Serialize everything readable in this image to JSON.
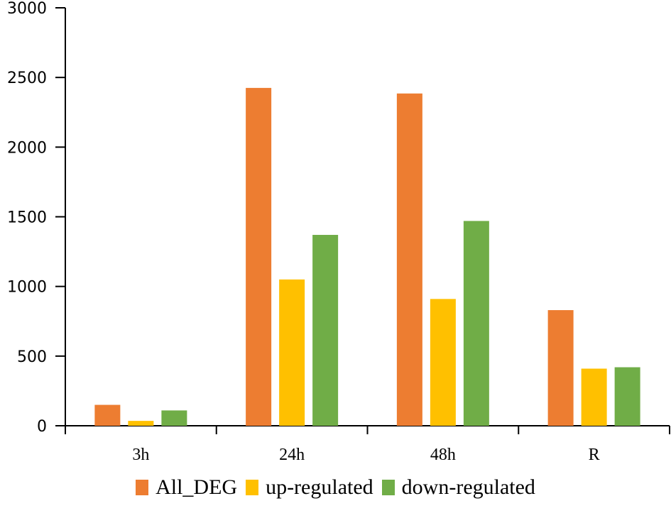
{
  "chart_data": {
    "type": "bar",
    "title": "",
    "xlabel": "",
    "ylabel": "",
    "categories": [
      "3h",
      "24h",
      "48h",
      "R"
    ],
    "series": [
      {
        "name": "All_DEG",
        "color": "#ED7D31",
        "values": [
          150,
          2425,
          2385,
          830
        ]
      },
      {
        "name": "up-regulated",
        "color": "#FFC000",
        "values": [
          35,
          1050,
          910,
          410
        ]
      },
      {
        "name": "down-regulated",
        "color": "#70AD47",
        "values": [
          110,
          1370,
          1470,
          420
        ]
      }
    ],
    "ylim": [
      0,
      3000
    ],
    "yticks": [
      0,
      500,
      1000,
      1500,
      2000,
      2500,
      3000
    ],
    "grid": false,
    "legend_position": "bottom"
  },
  "legend": {
    "items": [
      {
        "label": "All_DEG",
        "color": "#ED7D31"
      },
      {
        "label": "up-regulated",
        "color": "#FFC000"
      },
      {
        "label": "down-regulated",
        "color": "#70AD47"
      }
    ]
  }
}
